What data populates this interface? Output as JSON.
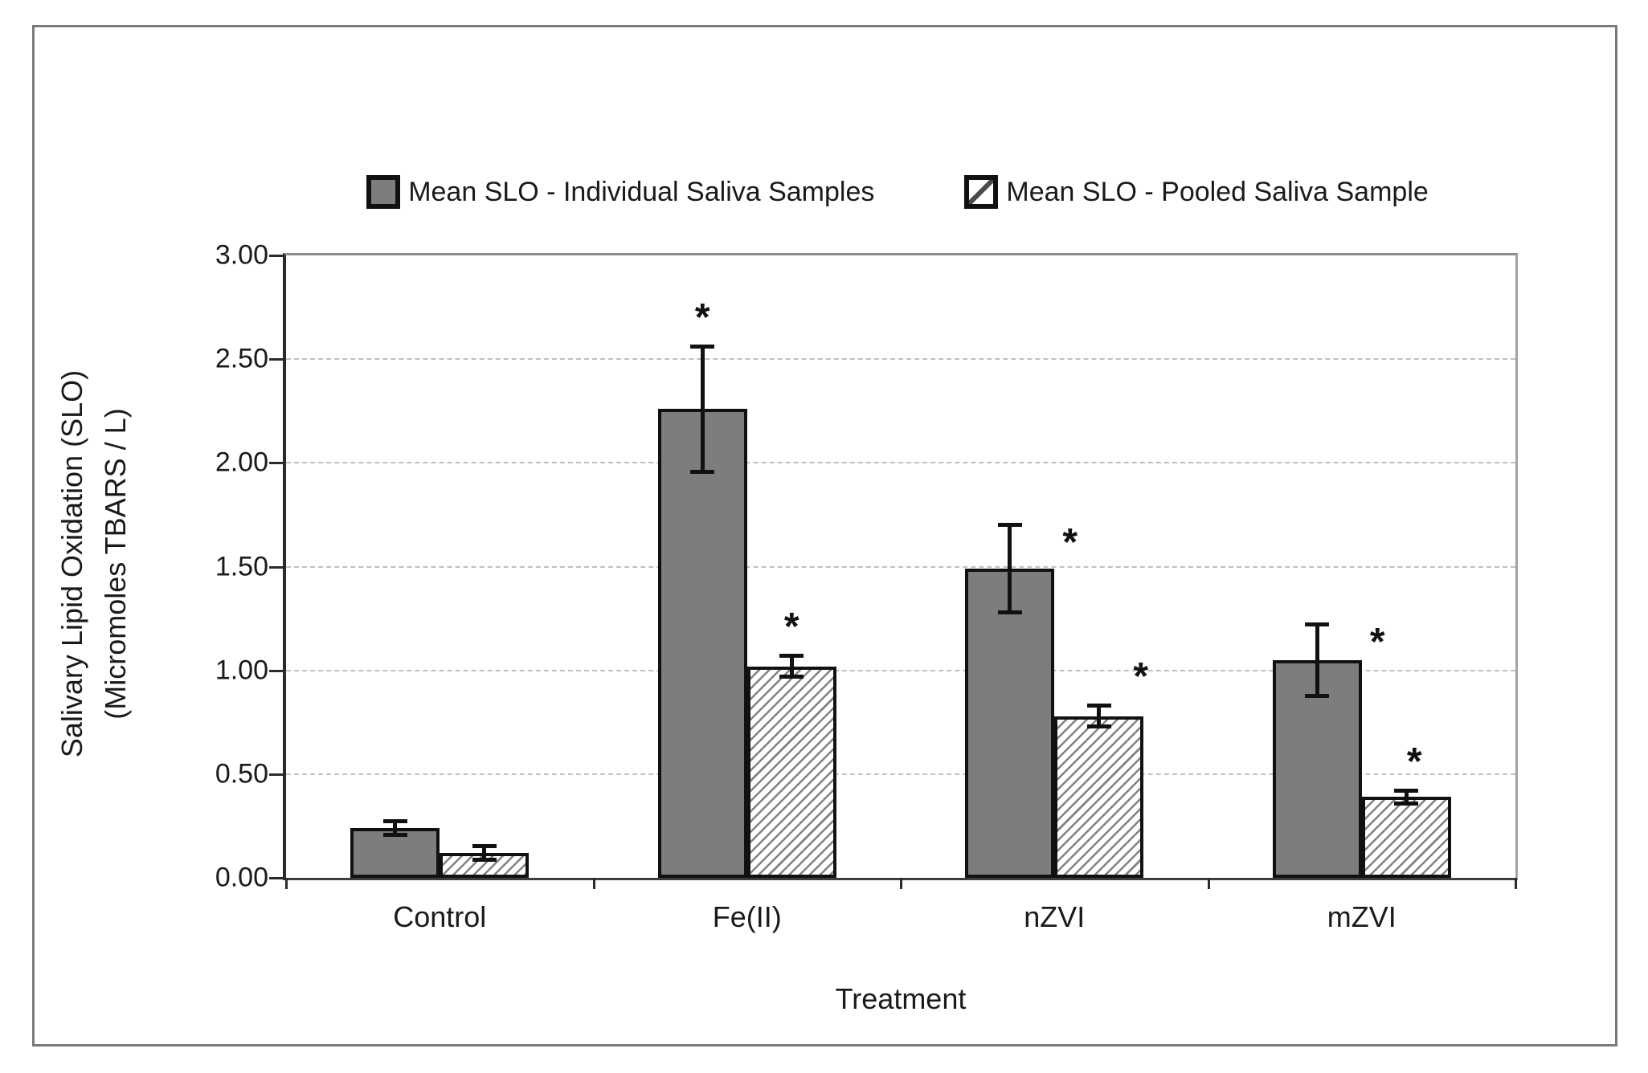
{
  "colors": {
    "bar_fill_solid": "#7d7d7d",
    "bar_border": "#111111",
    "axis_line": "#2b2b2b",
    "gridline": "#c0c0c0",
    "frame_border": "#7a7a7a",
    "text": "#1a1a1a"
  },
  "legend": {
    "items": [
      {
        "label": "Mean SLO - Individual Saliva Samples",
        "swatch": "solid-gray-square"
      },
      {
        "label": "Mean SLO - Pooled Saliva Sample",
        "swatch": "diagonal-hatch-square"
      }
    ]
  },
  "chart_data": {
    "type": "bar",
    "title": "",
    "xlabel": "Treatment",
    "ylabel": "Salivary Lipid Oxidation (SLO) (Micromoles TBARS / L)",
    "ylabel_lines": [
      "Salivary Lipid Oxidation (SLO)",
      "(Micromoles TBARS / L)"
    ],
    "ylim": [
      0,
      3.0
    ],
    "ytick_labels": [
      "3.00",
      "2.50",
      "2.00",
      "1.50",
      "1.00",
      "0.50",
      "0.00"
    ],
    "grid": "horizontal dashed gridlines at 0.50 intervals",
    "legend_position": "top-center",
    "significance_marker": "*",
    "categories": [
      "Control",
      "Fe(II)",
      "nZVI",
      "mZVI"
    ],
    "series": [
      {
        "name": "Mean SLO - Individual Saliva Samples",
        "style": "solid",
        "values": [
          0.24,
          2.26,
          1.49,
          1.05
        ],
        "error": [
          0.03,
          0.3,
          0.21,
          0.17
        ],
        "significant": [
          false,
          true,
          true,
          true
        ],
        "sig_dx": [
          0,
          0,
          75,
          75
        ],
        "sig_dy": [
          0,
          0,
          -58,
          -58
        ]
      },
      {
        "name": "Mean SLO - Pooled Saliva Sample",
        "style": "hatched",
        "values": [
          0.12,
          1.02,
          0.78,
          0.39
        ],
        "error": [
          0.03,
          0.05,
          0.05,
          0.03
        ],
        "significant": [
          false,
          true,
          true,
          true
        ],
        "sig_dx": [
          0,
          0,
          52,
          10
        ],
        "sig_dy": [
          0,
          0,
          0,
          0
        ]
      }
    ]
  }
}
